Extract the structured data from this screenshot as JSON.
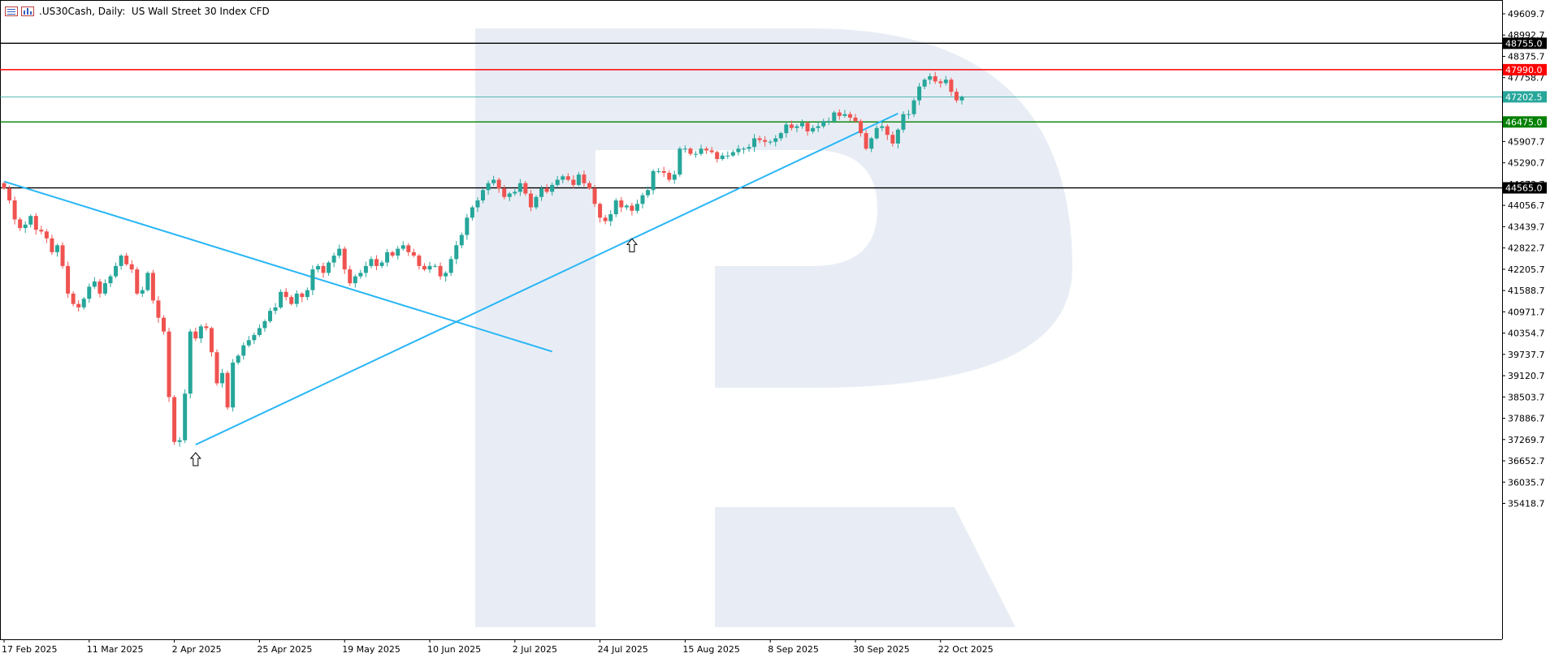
{
  "header": {
    "symbol": ".US30Cash",
    "timeframe": "Daily:",
    "description": "US Wall Street 30 Index CFD"
  },
  "colors": {
    "bull": "#26a69a",
    "bear": "#ef5350",
    "trendline": "#29b6f6",
    "resistance": "#ff0000",
    "support": "#008000",
    "black_level": "#000000",
    "current": "#26a69a",
    "watermark": "#e8edf5"
  },
  "chart_data": {
    "type": "candlestick",
    "y_ticks": [
      "49609.7",
      "48992.7",
      "48375.7",
      "47758.7",
      "47141.7",
      "46524.7",
      "45907.7",
      "45290.7",
      "44673.7",
      "44056.7",
      "43439.7",
      "42822.7",
      "42205.7",
      "41588.7",
      "40971.7",
      "40354.7",
      "39737.7",
      "39120.7",
      "38503.7",
      "37886.7",
      "37269.7",
      "36652.7",
      "36035.7",
      "35418.7"
    ],
    "y_tick_values": [
      49609.7,
      48992.7,
      48375.7,
      47758.7,
      47141.7,
      46524.7,
      45907.7,
      45290.7,
      44673.7,
      44056.7,
      43439.7,
      42822.7,
      42205.7,
      41588.7,
      40971.7,
      40354.7,
      39737.7,
      39120.7,
      38503.7,
      37886.7,
      37269.7,
      36652.7,
      36035.7,
      35418.7
    ],
    "x_labels": [
      "17 Feb 2025",
      "11 Mar 2025",
      "2 Apr 2025",
      "25 Apr 2025",
      "19 May 2025",
      "10 Jun 2025",
      "2 Jul 2025",
      "24 Jul 2025",
      "15 Aug 2025",
      "8 Sep 2025",
      "30 Sep 2025",
      "22 Oct 2025"
    ],
    "x_label_index": [
      0,
      16,
      32,
      48,
      64,
      80,
      96,
      112,
      128,
      144,
      160,
      176
    ],
    "levels": [
      {
        "label": "48755.0",
        "value": 48755.0,
        "color": "#000000"
      },
      {
        "label": "47990.0",
        "value": 47990.0,
        "color": "#ff0000"
      },
      {
        "label": "47202.5",
        "value": 47202.5,
        "color": "#26a69a"
      },
      {
        "label": "46475.0",
        "value": 46475.0,
        "color": "#008000"
      },
      {
        "label": "44565.0",
        "value": 44565.0,
        "color": "#000000"
      }
    ],
    "trendlines": [
      {
        "from": [
          0,
          44750
        ],
        "to": [
          103,
          39820
        ]
      },
      {
        "from": [
          36,
          37120
        ],
        "to": [
          168,
          46720
        ]
      }
    ],
    "arrows": [
      {
        "index": 36,
        "value": 36700
      },
      {
        "index": 118,
        "value": 42900
      }
    ],
    "closes": [
      44550,
      44200,
      43650,
      43400,
      43500,
      43750,
      43350,
      43300,
      43100,
      42700,
      42900,
      42300,
      41500,
      41200,
      41100,
      41350,
      41700,
      41850,
      41500,
      41800,
      42000,
      42300,
      42600,
      42350,
      42200,
      41500,
      41600,
      42100,
      41300,
      40800,
      40400,
      38500,
      37200,
      37250,
      38600,
      40400,
      40200,
      40550,
      40500,
      39800,
      38900,
      39200,
      38200,
      39500,
      39700,
      40000,
      40150,
      40300,
      40500,
      40700,
      41000,
      41100,
      41550,
      41400,
      41200,
      41500,
      41400,
      41600,
      42200,
      42300,
      42100,
      42400,
      42600,
      42800,
      42200,
      41800,
      42000,
      42100,
      42300,
      42500,
      42300,
      42400,
      42700,
      42600,
      42800,
      42900,
      42700,
      42600,
      42300,
      42200,
      42300,
      42300,
      42000,
      42100,
      42500,
      42900,
      43200,
      43700,
      44000,
      44200,
      44500,
      44700,
      44800,
      44550,
      44300,
      44400,
      44450,
      44700,
      44400,
      44000,
      44300,
      44550,
      44450,
      44650,
      44800,
      44900,
      44800,
      44650,
      44950,
      44700,
      44550,
      44100,
      43700,
      43600,
      43800,
      44200,
      44000,
      44050,
      43900,
      44100,
      44350,
      44500,
      45050,
      45050,
      45000,
      44800,
      44950,
      45700,
      45700,
      45550,
      45550,
      45700,
      45650,
      45600,
      45400,
      45500,
      45500,
      45600,
      45700,
      45700,
      45750,
      46000,
      45950,
      45900,
      45900,
      46000,
      46150,
      46400,
      46300,
      46350,
      46450,
      46200,
      46300,
      46350,
      46500,
      46500,
      46750,
      46650,
      46700,
      46600,
      46500,
      46150,
      45700,
      46000,
      46300,
      46350,
      46100,
      45850,
      46250,
      46700,
      46700,
      47100,
      47500,
      47700,
      47800,
      47650,
      47600,
      47700,
      47350,
      47100,
      47200
    ]
  }
}
